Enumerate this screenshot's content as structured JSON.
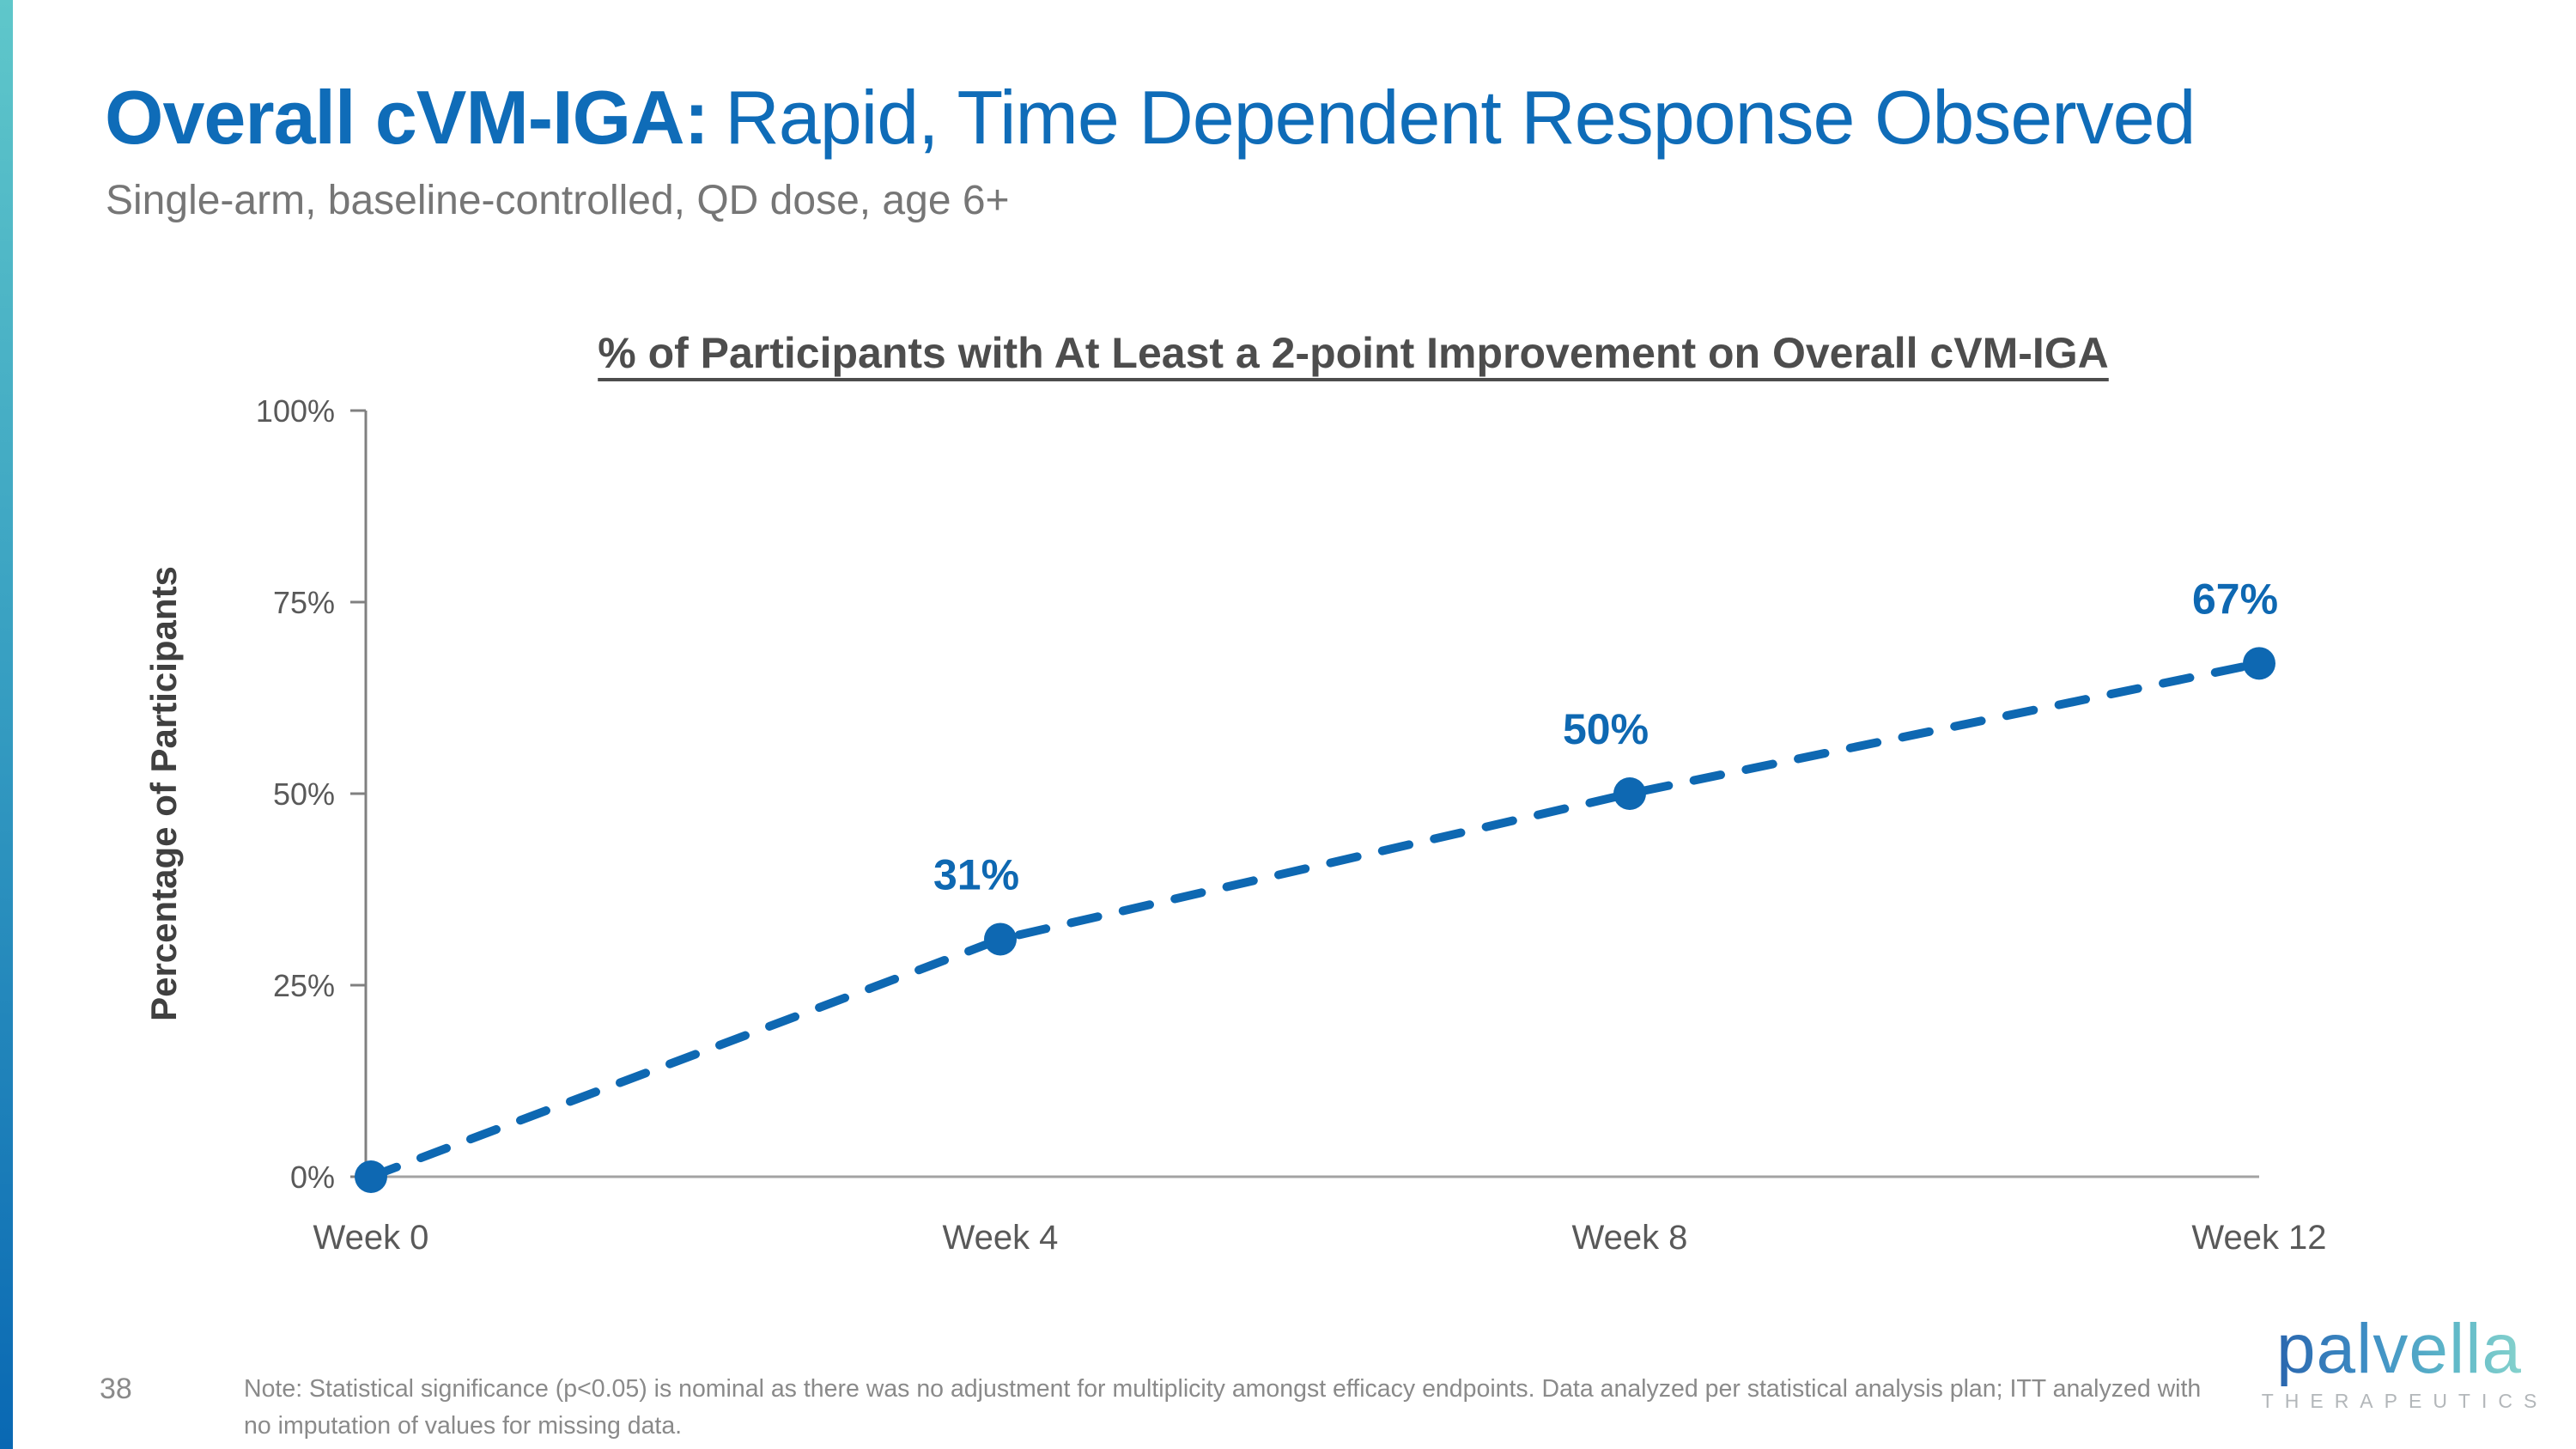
{
  "slide": {
    "title_bold": "Overall cVM-IGA:",
    "title_rest": "Rapid, Time Dependent Response Observed",
    "subtitle": "Single-arm, baseline-controlled, QD dose, age 6+",
    "page_number": "38",
    "note": "Note: Statistical significance (p<0.05) is nominal as there was no adjustment for multiplicity amongst efficacy endpoints. Data analyzed per statistical analysis plan; ITT analyzed with no imputation of values for missing data.",
    "logo": {
      "name": "palvella",
      "tagline": "THERAPEUTICS"
    },
    "colors": {
      "title_blue": "#0f6cb8",
      "chart_blue": "#0e68b2",
      "accent_gradient_top": "#5fc7ca",
      "accent_gradient_bottom": "#0968b3",
      "axis_gray": "#808080",
      "text_gray": "#595959"
    }
  },
  "chart_data": {
    "type": "line",
    "title": "% of Participants with At Least a 2-point Improvement on Overall cVM-IGA",
    "categories": [
      "Week 0",
      "Week 4",
      "Week 8",
      "Week 12"
    ],
    "values": [
      0,
      31,
      50,
      67
    ],
    "point_labels": [
      "",
      "31%",
      "50%",
      "67%"
    ],
    "xlabel": "",
    "ylabel": "Percentage of Participants",
    "ylim": [
      0,
      100
    ],
    "yticks": [
      0,
      25,
      50,
      75,
      100
    ],
    "ytick_labels": [
      "0%",
      "25%",
      "50%",
      "75%",
      "100%"
    ],
    "grid": false,
    "legend_position": "none",
    "line_style": "dashed",
    "marker": "circle",
    "line_color": "#0e68b2"
  }
}
